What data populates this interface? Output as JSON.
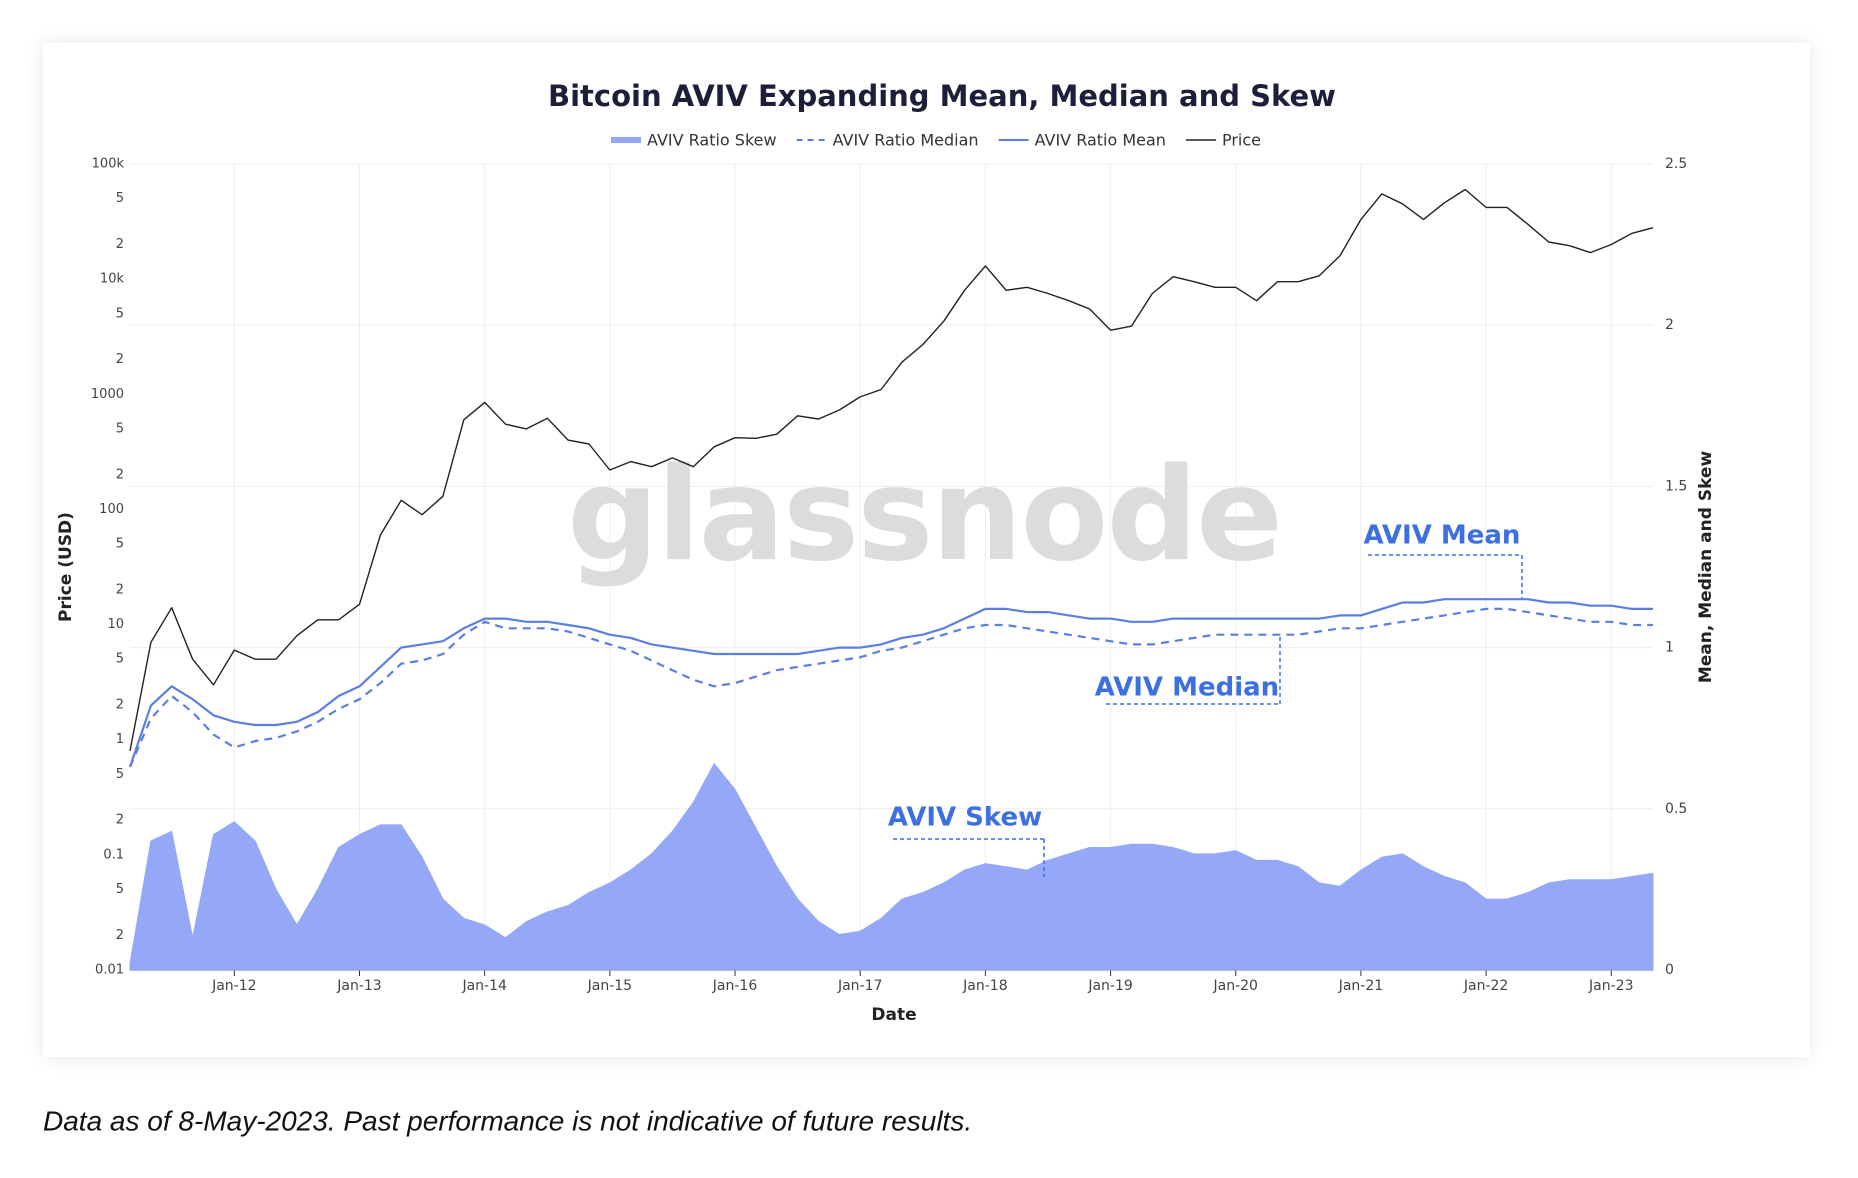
{
  "chart_data": {
    "type": "line",
    "title": "Bitcoin AVIV Expanding Mean, Median and Skew",
    "xlabel": "Date",
    "ylabel": "Price (USD)",
    "y2label": "Mean, Median and Skew",
    "watermark": "glassnode",
    "annotations": [
      "AVIV Mean",
      "AVIV Median",
      "AVIV Skew"
    ],
    "grid": true,
    "yscale": "log",
    "x": [
      "2011-03",
      "2011-05",
      "2011-07",
      "2011-09",
      "2011-11",
      "2012-01",
      "2012-03",
      "2012-05",
      "2012-07",
      "2012-09",
      "2012-11",
      "2013-01",
      "2013-03",
      "2013-05",
      "2013-07",
      "2013-09",
      "2013-11",
      "2014-01",
      "2014-03",
      "2014-05",
      "2014-07",
      "2014-09",
      "2014-11",
      "2015-01",
      "2015-03",
      "2015-05",
      "2015-07",
      "2015-09",
      "2015-11",
      "2016-01",
      "2016-03",
      "2016-05",
      "2016-07",
      "2016-09",
      "2016-11",
      "2017-01",
      "2017-03",
      "2017-05",
      "2017-07",
      "2017-09",
      "2017-11",
      "2018-01",
      "2018-03",
      "2018-05",
      "2018-07",
      "2018-09",
      "2018-11",
      "2019-01",
      "2019-03",
      "2019-05",
      "2019-07",
      "2019-09",
      "2019-11",
      "2020-01",
      "2020-03",
      "2020-05",
      "2020-07",
      "2020-09",
      "2020-11",
      "2021-01",
      "2021-03",
      "2021-05",
      "2021-07",
      "2021-09",
      "2021-11",
      "2022-01",
      "2022-03",
      "2022-05",
      "2022-07",
      "2022-09",
      "2022-11",
      "2023-01",
      "2023-03",
      "2023-05"
    ],
    "xlim": [
      "2011-03",
      "2023-05"
    ],
    "xticks": [
      {
        "value": "2012-01",
        "label": "Jan-12"
      },
      {
        "value": "2013-01",
        "label": "Jan-13"
      },
      {
        "value": "2014-01",
        "label": "Jan-14"
      },
      {
        "value": "2015-01",
        "label": "Jan-15"
      },
      {
        "value": "2016-01",
        "label": "Jan-16"
      },
      {
        "value": "2017-01",
        "label": "Jan-17"
      },
      {
        "value": "2018-01",
        "label": "Jan-18"
      },
      {
        "value": "2019-01",
        "label": "Jan-19"
      },
      {
        "value": "2020-01",
        "label": "Jan-20"
      },
      {
        "value": "2021-01",
        "label": "Jan-21"
      },
      {
        "value": "2022-01",
        "label": "Jan-22"
      },
      {
        "value": "2023-01",
        "label": "Jan-23"
      }
    ],
    "ylim": [
      0.01,
      100000
    ],
    "yticks": [
      {
        "value": 100000,
        "label": "100k"
      },
      {
        "value": 50000,
        "label": "5"
      },
      {
        "value": 20000,
        "label": "2"
      },
      {
        "value": 10000,
        "label": "10k"
      },
      {
        "value": 5000,
        "label": "5"
      },
      {
        "value": 2000,
        "label": "2"
      },
      1000,
      {
        "value": 500,
        "label": "5"
      },
      {
        "value": 200,
        "label": "2"
      },
      100,
      {
        "value": 50,
        "label": "5"
      },
      {
        "value": 20,
        "label": "2"
      },
      10,
      {
        "value": 5,
        "label": "5"
      },
      {
        "value": 2,
        "label": "2"
      },
      1,
      {
        "value": 0.5,
        "label": "5"
      },
      {
        "value": 0.2,
        "label": "2"
      },
      0.1,
      {
        "value": 0.05,
        "label": "5"
      },
      {
        "value": 0.02,
        "label": "2"
      },
      0.01
    ],
    "y2lim": [
      0,
      2.5
    ],
    "y2ticks": [
      0,
      0.5,
      1,
      1.5,
      2,
      2.5
    ],
    "series": [
      {
        "name": "AVIV Ratio Skew",
        "color": "#95a8f7",
        "style": "area",
        "axis": "y2",
        "values": [
          0.02,
          0.4,
          0.43,
          0.1,
          0.42,
          0.46,
          0.4,
          0.25,
          0.14,
          0.25,
          0.38,
          0.42,
          0.45,
          0.45,
          0.35,
          0.22,
          0.16,
          0.14,
          0.1,
          0.15,
          0.18,
          0.2,
          0.24,
          0.27,
          0.31,
          0.36,
          0.43,
          0.52,
          0.64,
          0.56,
          0.44,
          0.32,
          0.22,
          0.15,
          0.11,
          0.12,
          0.16,
          0.22,
          0.24,
          0.27,
          0.31,
          0.33,
          0.32,
          0.31,
          0.34,
          0.36,
          0.38,
          0.38,
          0.39,
          0.39,
          0.38,
          0.36,
          0.36,
          0.37,
          0.34,
          0.34,
          0.32,
          0.27,
          0.26,
          0.31,
          0.35,
          0.36,
          0.32,
          0.29,
          0.27,
          0.22,
          0.22,
          0.24,
          0.27,
          0.28,
          0.28,
          0.28,
          0.29,
          0.3
        ]
      },
      {
        "name": "AVIV Ratio Median",
        "color": "#5b7fe0",
        "style": "line",
        "dash": true,
        "axis": "y2",
        "values": [
          0.63,
          0.78,
          0.85,
          0.8,
          0.73,
          0.69,
          0.71,
          0.72,
          0.74,
          0.77,
          0.81,
          0.84,
          0.89,
          0.95,
          0.96,
          0.98,
          1.04,
          1.08,
          1.06,
          1.06,
          1.06,
          1.05,
          1.03,
          1.01,
          0.99,
          0.96,
          0.93,
          0.9,
          0.88,
          0.89,
          0.91,
          0.93,
          0.94,
          0.95,
          0.96,
          0.97,
          0.99,
          1.0,
          1.02,
          1.04,
          1.06,
          1.07,
          1.07,
          1.06,
          1.05,
          1.04,
          1.03,
          1.02,
          1.01,
          1.01,
          1.02,
          1.03,
          1.04,
          1.04,
          1.04,
          1.04,
          1.04,
          1.05,
          1.06,
          1.06,
          1.07,
          1.08,
          1.09,
          1.1,
          1.11,
          1.12,
          1.12,
          1.11,
          1.1,
          1.09,
          1.08,
          1.08,
          1.07,
          1.07
        ]
      },
      {
        "name": "AVIV Ratio Mean",
        "color": "#5b7fe0",
        "style": "line",
        "dash": false,
        "axis": "y2",
        "values": [
          0.63,
          0.82,
          0.88,
          0.84,
          0.79,
          0.77,
          0.76,
          0.76,
          0.77,
          0.8,
          0.85,
          0.88,
          0.94,
          1.0,
          1.01,
          1.02,
          1.06,
          1.09,
          1.09,
          1.08,
          1.08,
          1.07,
          1.06,
          1.04,
          1.03,
          1.01,
          1.0,
          0.99,
          0.98,
          0.98,
          0.98,
          0.98,
          0.98,
          0.99,
          1.0,
          1.0,
          1.01,
          1.03,
          1.04,
          1.06,
          1.09,
          1.12,
          1.12,
          1.11,
          1.11,
          1.1,
          1.09,
          1.09,
          1.08,
          1.08,
          1.09,
          1.09,
          1.09,
          1.09,
          1.09,
          1.09,
          1.09,
          1.09,
          1.1,
          1.1,
          1.12,
          1.14,
          1.14,
          1.15,
          1.15,
          1.15,
          1.15,
          1.15,
          1.14,
          1.14,
          1.13,
          1.13,
          1.12,
          1.12
        ]
      },
      {
        "name": "Price",
        "color": "#222222",
        "style": "line",
        "dash": false,
        "axis": "y",
        "values": [
          0.8,
          7,
          14,
          5,
          3,
          6,
          5,
          5,
          8,
          11,
          11,
          15,
          60,
          120,
          90,
          130,
          600,
          850,
          550,
          500,
          620,
          400,
          370,
          220,
          260,
          235,
          280,
          235,
          350,
          420,
          415,
          450,
          650,
          610,
          730,
          950,
          1100,
          1900,
          2700,
          4300,
          8000,
          13000,
          8000,
          8500,
          7500,
          6500,
          5500,
          3600,
          3900,
          7500,
          10500,
          9500,
          8500,
          8500,
          6500,
          9500,
          9500,
          10700,
          16000,
          33000,
          55000,
          45000,
          33000,
          46000,
          60000,
          42000,
          42000,
          30000,
          21000,
          19500,
          17000,
          20000,
          25000,
          28000
        ]
      }
    ]
  },
  "footnote": "Data as of 8-May-2023. Past performance is not indicative of future results."
}
